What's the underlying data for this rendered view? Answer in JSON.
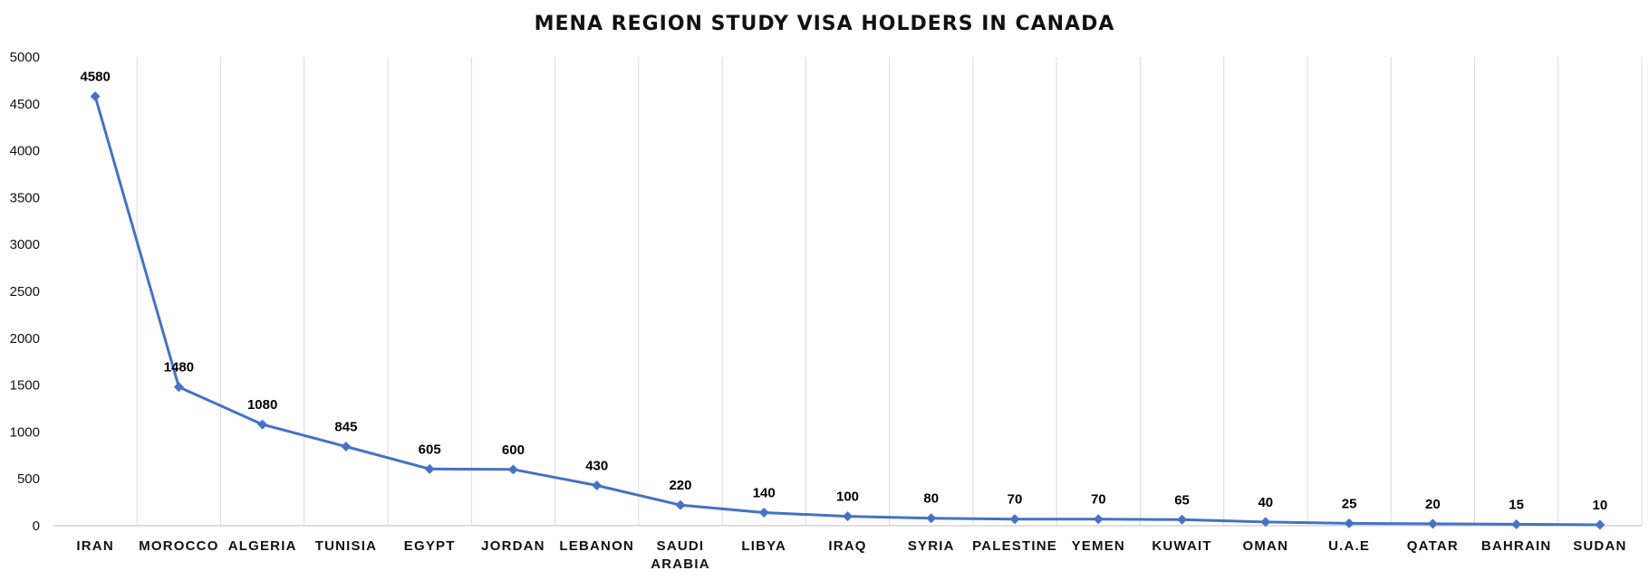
{
  "chart_data": {
    "type": "line",
    "title": "MENA REGION STUDY VISA HOLDERS IN CANADA",
    "categories": [
      "IRAN",
      "MOROCCO",
      "ALGERIA",
      "TUNISIA",
      "EGYPT",
      "JORDAN",
      "LEBANON",
      "SAUDI ARABIA",
      "LIBYA",
      "IRAQ",
      "SYRIA",
      "PALESTINE",
      "YEMEN",
      "KUWAIT",
      "OMAN",
      "U.A.E",
      "QATAR",
      "BAHRAIN",
      "SUDAN"
    ],
    "series": [
      {
        "values": [
          4580,
          1480,
          1080,
          845,
          605,
          600,
          430,
          220,
          140,
          100,
          80,
          70,
          70,
          65,
          40,
          25,
          20,
          15,
          10
        ]
      }
    ],
    "ylim": [
      0,
      5000
    ],
    "yticks": [
      0,
      500,
      1000,
      1500,
      2000,
      2500,
      3000,
      3500,
      4000,
      4500,
      5000
    ],
    "grid": "vertical",
    "line_color": "#4472c4",
    "marker": "diamond",
    "data_labels": true
  }
}
